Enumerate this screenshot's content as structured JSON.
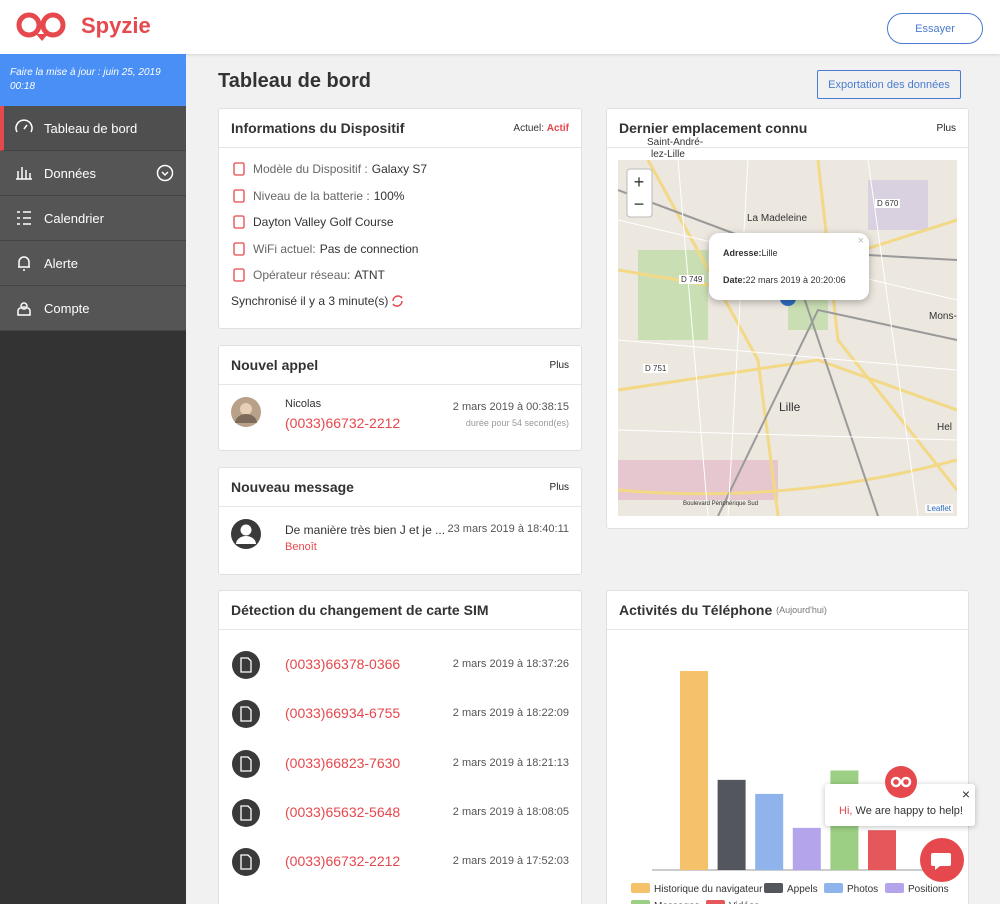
{
  "header": {
    "logo": "Spyzie",
    "button": "Essayer"
  },
  "sidebar": {
    "update": "Faire la mise à jour : juin 25, 2019 00:18",
    "menu": [
      "Tableau de bord",
      "Données",
      "Calendrier",
      "Alerte",
      "Compte"
    ]
  },
  "page": {
    "title": "Tableau de bord",
    "export": "Exportation des données"
  },
  "device": {
    "title": "Informations du Dispositif",
    "status_label": "Actuel:",
    "status": "Actif",
    "rows": [
      {
        "label": "Modèle du Dispositif :",
        "value": "Galaxy S7"
      },
      {
        "label": "Niveau de la batterie :",
        "value": "100%"
      },
      {
        "value": "Dayton Valley Golf Course"
      },
      {
        "label": "WiFi actuel:",
        "value": "Pas de connection"
      },
      {
        "label": "Opérateur réseau:",
        "value": "ATNT"
      }
    ],
    "sync": "Synchronisé il y a 3 minute(s)"
  },
  "call": {
    "title": "Nouvel appel",
    "more": "Plus",
    "name": "Nicolas",
    "number": "(0033)66732-2212",
    "date": "2 mars 2019 à 00:38:15",
    "duration": "durée pour 54 second(es)"
  },
  "message": {
    "title": "Nouveau message",
    "more": "Plus",
    "text": "De manière très bien J et je ...",
    "sender": "Benoît",
    "date": "23 mars 2019 à 18:40:11"
  },
  "sim": {
    "title": "Détection du changement de carte SIM",
    "rows": [
      {
        "number": "(0033)66378-0366",
        "date": "2 mars 2019 à 18:37:26"
      },
      {
        "number": "(0033)66934-6755",
        "date": "2 mars 2019 à 18:22:09"
      },
      {
        "number": "(0033)66823-7630",
        "date": "2 mars 2019 à 18:21:13"
      },
      {
        "number": "(0033)65632-5648",
        "date": "2 mars 2019 à 18:08:05"
      },
      {
        "number": "(0033)66732-2212",
        "date": "2 mars 2019 à 17:52:03"
      }
    ]
  },
  "map": {
    "title": "Dernier emplacement connu",
    "more": "Plus",
    "popup": {
      "address_label": "Adresse:",
      "address": "Lille",
      "date_label": "Date:",
      "date": "22 mars 2019 à 20:20:06"
    },
    "labels": [
      "Saint-André-",
      "lez-Lille",
      "La Madeleine",
      "D 670",
      "D 749",
      "D 751",
      "Lille",
      "Mons-",
      "Hel",
      "Boulevard Périphérique Sud"
    ],
    "attribution": "Leaflet"
  },
  "chart_data": {
    "type": "bar",
    "title": "Activités du Téléphone",
    "subtitle": "(Aujourd'hui)",
    "categories": [
      "Historique du navigateur",
      "Appels",
      "Photos",
      "Positions",
      "Messages",
      "Vidéos"
    ],
    "values": [
      170,
      77,
      65,
      36,
      85,
      34
    ],
    "colors": [
      "#f5c26b",
      "#54565e",
      "#8fb4ec",
      "#b3a4ec",
      "#9ccf83",
      "#e5575a"
    ]
  },
  "chat": {
    "greeting": "Hi,",
    "text": "We are happy to help!"
  }
}
